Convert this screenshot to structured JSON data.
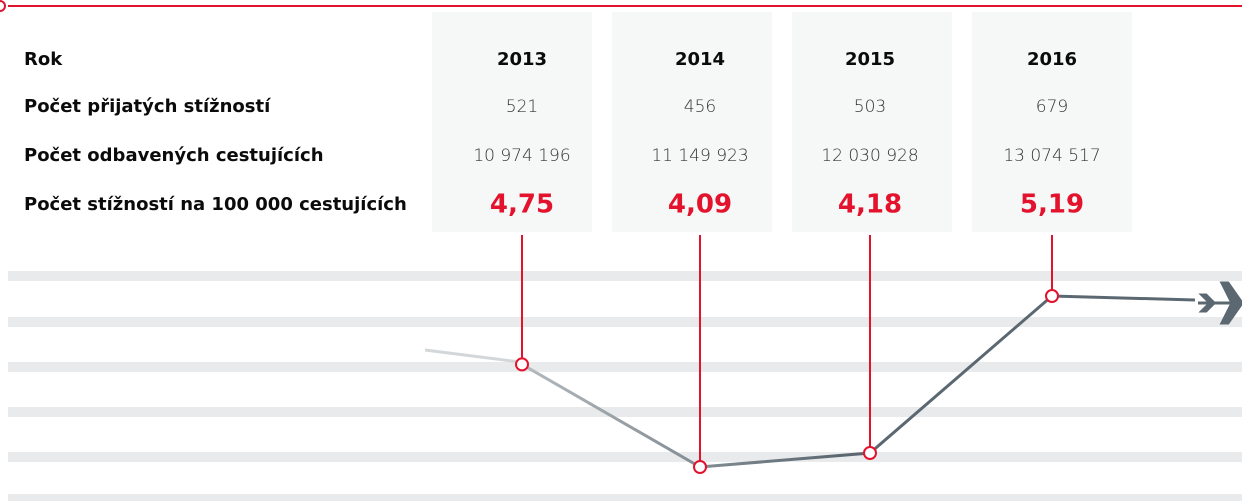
{
  "chart_data": {
    "type": "line",
    "x_label": "Rok",
    "categories": [
      "2013",
      "2014",
      "2015",
      "2016"
    ],
    "series_label": "Počet stížností na 100 000 cestujících",
    "values": [
      4.75,
      4.09,
      4.18,
      5.19
    ],
    "value_labels": [
      "4,75",
      "4,09",
      "4,18",
      "5,19"
    ],
    "line_color": "#5b6871",
    "marker_color": "#e3132e"
  },
  "table": {
    "rows": [
      [
        "Počet přijatých stížností",
        "521",
        "456",
        "503",
        "679"
      ],
      [
        "Počet odbavených cestujících",
        "10 974 196",
        "11 149 923",
        "12 030 928",
        "13 074 517"
      ]
    ]
  }
}
